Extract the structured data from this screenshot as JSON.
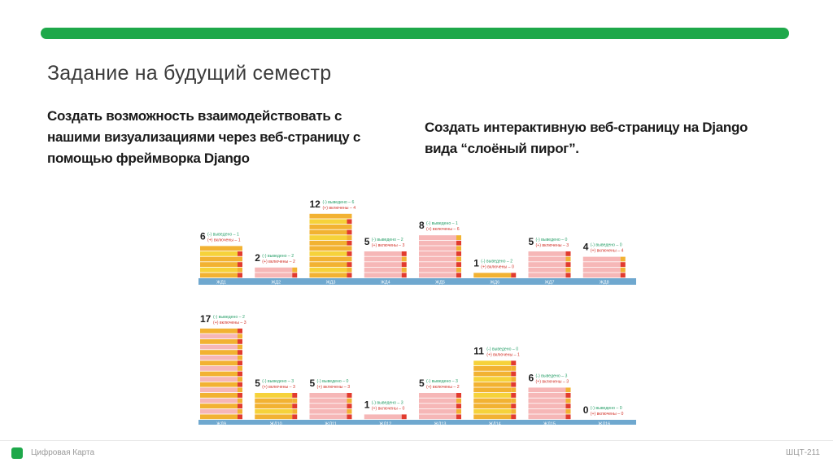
{
  "slide": {
    "title": "Задание на будущий семестр",
    "left_paragraph": "Создать возможность взаимодействовать с нашими визуализациями через веб-страницу с помощью фреймворка Django",
    "right_paragraph": "Создать интерактивную веб-страницу на Django вида “слоёный пирог”.",
    "footer_brand": "Цифровая Карта",
    "footer_code": "ШЦТ-211"
  },
  "colors": {
    "accent": "#1ea84a",
    "bar_orange": "#f2b232",
    "bar_yellow": "#f6d23a",
    "bar_pink": "#f6b7b7",
    "bar_red": "#e23b2e",
    "axis_blue": "#6fa8cf",
    "out_green": "#2aa06a",
    "in_red": "#d2342a"
  },
  "chart_data": {
    "type": "bar",
    "title": "",
    "legend": {
      "out": "(-) выведено",
      "in": "(+) включены"
    },
    "rows": [
      {
        "groups": [
          {
            "label": "ЖД1",
            "total": "6",
            "out": "(-) выведено – 1",
            "in": "(+) включены – 1",
            "stacks": 6,
            "pattern": "orange"
          },
          {
            "label": "ЖД2",
            "total": "2",
            "out": "(-) выведено – 2",
            "in": "(+) включены – 2",
            "stacks": 2,
            "pattern": "pink"
          },
          {
            "label": "ЖД3",
            "total": "12",
            "out": "(-) выведено – 6",
            "in": "(+) включены – 4",
            "stacks": 12,
            "pattern": "orange"
          },
          {
            "label": "ЖД4",
            "total": "5",
            "out": "(-) выведено – 2",
            "in": "(+) включены – 3",
            "stacks": 5,
            "pattern": "pink"
          },
          {
            "label": "ЖД5",
            "total": "8",
            "out": "(-) выведено – 1",
            "in": "(+) включены – 6",
            "stacks": 8,
            "pattern": "pink"
          },
          {
            "label": "ЖД6",
            "total": "1",
            "out": "(-) выведено – 2",
            "in": "(+) включены – 0",
            "stacks": 1,
            "pattern": "orange"
          },
          {
            "label": "ЖД7",
            "total": "5",
            "out": "(-) выведено – 0",
            "in": "(+) включены – 3",
            "stacks": 5,
            "pattern": "pink"
          },
          {
            "label": "ЖД8",
            "total": "4",
            "out": "(-) выведено – 0",
            "in": "(+) включены – 4",
            "stacks": 4,
            "pattern": "pink"
          }
        ]
      },
      {
        "groups": [
          {
            "label": "ЖД9",
            "total": "17",
            "out": "(-) выведено – 2",
            "in": "(+) включены – 3",
            "stacks": 17,
            "pattern": "mixed"
          },
          {
            "label": "ЖД10",
            "total": "5",
            "out": "(-) выведено – 3",
            "in": "(+) включены – 3",
            "stacks": 5,
            "pattern": "orange"
          },
          {
            "label": "ЖД11",
            "total": "5",
            "out": "(-) выведено – 0",
            "in": "(+) включены – 3",
            "stacks": 5,
            "pattern": "pink"
          },
          {
            "label": "ЖД12",
            "total": "1",
            "out": "(-) выведено – 3",
            "in": "(+) включены – 0",
            "stacks": 1,
            "pattern": "pink"
          },
          {
            "label": "ЖД13",
            "total": "5",
            "out": "(-) выведено – 3",
            "in": "(+) включены – 2",
            "stacks": 5,
            "pattern": "pink"
          },
          {
            "label": "ЖД14",
            "total": "11",
            "out": "(-) выведено – 0",
            "in": "(+) включены – 1",
            "stacks": 11,
            "pattern": "orange"
          },
          {
            "label": "ЖД15",
            "total": "6",
            "out": "(-) выведено – 3",
            "in": "(+) включены – 3",
            "stacks": 6,
            "pattern": "pink"
          },
          {
            "label": "ЖД16",
            "total": "0",
            "out": "(-) выведено – 0",
            "in": "(+) включены – 0",
            "stacks": 0,
            "pattern": "pink"
          }
        ]
      }
    ]
  }
}
